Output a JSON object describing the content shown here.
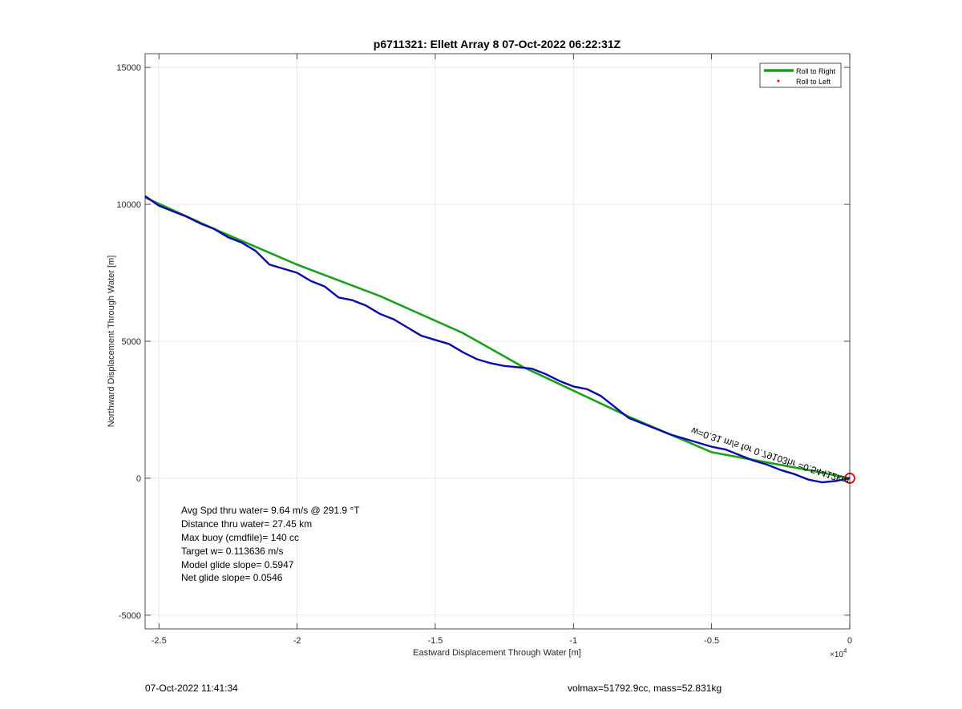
{
  "chart_data": {
    "type": "line",
    "title": "p6711321: Ellett Array 8 07-Oct-2022 06:22:31Z",
    "xlabel": "Eastward Displacement Through Water [m]",
    "ylabel": "Northward Displacement Through Water [m]",
    "xlim": [
      -25500,
      0
    ],
    "ylim": [
      -5500,
      15500
    ],
    "x_exponent_label": "×10",
    "x_exponent_power": "4",
    "x_ticks": [
      -25000,
      -20000,
      -15000,
      -10000,
      -5000,
      0
    ],
    "x_tick_labels": [
      "-2.5",
      "-2",
      "-1.5",
      "-1",
      "-0.5",
      "0"
    ],
    "y_ticks": [
      -5000,
      0,
      5000,
      10000,
      15000
    ],
    "y_tick_labels": [
      "-5000",
      "0",
      "5000",
      "10000",
      "15000"
    ],
    "grid": true,
    "legend_position": "top-right",
    "series": [
      {
        "name": "Roll to Right",
        "color": "#1aa01a",
        "x": [
          0,
          -1500,
          -5000,
          -8000,
          -11800,
          -14000,
          -17000,
          -20000,
          -23000,
          -25500
        ],
        "y": [
          0,
          300,
          950,
          2250,
          4050,
          5300,
          6650,
          7800,
          9100,
          10250
        ]
      },
      {
        "name": "Roll to Left",
        "color": "#ff0000",
        "x": [],
        "y": []
      },
      {
        "name": "",
        "color": "#0a0aa8",
        "x": [
          0,
          -500,
          -1000,
          -1500,
          -2000,
          -2500,
          -3000,
          -3500,
          -4000,
          -4500,
          -5000,
          -5500,
          -6000,
          -6500,
          -7000,
          -7500,
          -8000,
          -8500,
          -9000,
          -9500,
          -10000,
          -10500,
          -11000,
          -11500,
          -12000,
          -12500,
          -13000,
          -13500,
          -14000,
          -14500,
          -15000,
          -15500,
          -16000,
          -16500,
          -17000,
          -17500,
          -18000,
          -18500,
          -19000,
          -19500,
          -20000,
          -20500,
          -21000,
          -21500,
          -22000,
          -22500,
          -23000,
          -23500,
          -24000,
          -24500,
          -25000,
          -25500
        ],
        "y": [
          0,
          -100,
          -150,
          -50,
          150,
          300,
          500,
          650,
          850,
          1050,
          1150,
          1300,
          1450,
          1600,
          1800,
          2000,
          2200,
          2600,
          3000,
          3250,
          3350,
          3550,
          3800,
          4000,
          4050,
          4100,
          4200,
          4350,
          4600,
          4900,
          5050,
          5200,
          5500,
          5800,
          6000,
          6300,
          6500,
          6600,
          7000,
          7200,
          7500,
          7650,
          7800,
          8300,
          8600,
          8800,
          9100,
          9300,
          9550,
          9750,
          9950,
          10300
        ]
      }
    ],
    "marker": {
      "name": "end-marker",
      "x": 0,
      "y": 0,
      "color": "#e00000"
    },
    "annotation": {
      "text": "w=0.31 m/s for 0.79103hr =0.54412km",
      "anchor_x": 0,
      "anchor_y": 0
    },
    "stats": [
      "Avg Spd thru water=  9.64 m/s @ 291.9 °T",
      "Distance thru water= 27.45 km",
      "Max buoy (cmdfile)= 140 cc",
      "Target w= 0.113636 m/s",
      "Model glide slope= 0.5947",
      "Net glide slope= 0.0546"
    ]
  },
  "footer": {
    "timestamp": "07-Oct-2022 11:41:34",
    "info": "volmax=51792.9cc, mass=52.831kg"
  }
}
